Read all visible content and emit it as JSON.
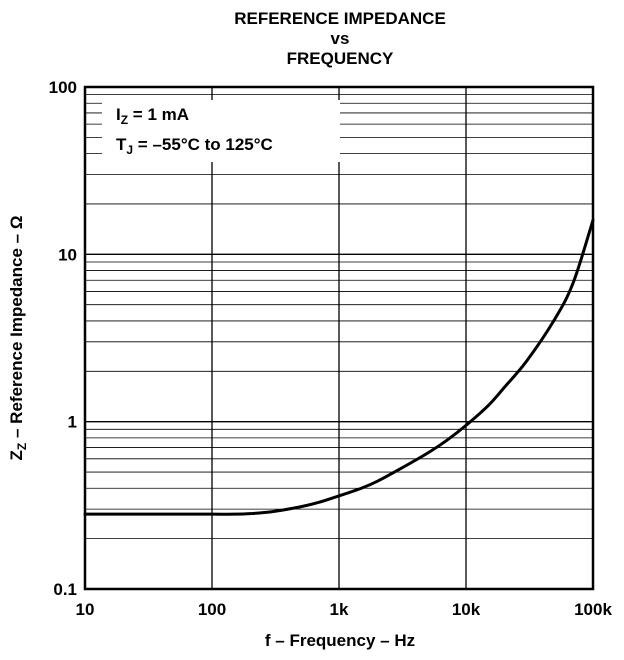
{
  "chart_data": {
    "type": "line",
    "title_lines": [
      "REFERENCE IMPEDANCE",
      "vs",
      "FREQUENCY"
    ],
    "xlabel": "f – Frequency – Hz",
    "ylabel_main": "Z",
    "ylabel_sub": "Z",
    "ylabel_rest": " – Reference Impedance – Ω",
    "x_scale": "log",
    "y_scale": "log",
    "xlim": [
      10,
      100000
    ],
    "ylim": [
      0.1,
      100
    ],
    "x_ticks": [
      {
        "value": 10,
        "label": "10"
      },
      {
        "value": 100,
        "label": "100"
      },
      {
        "value": 1000,
        "label": "1k"
      },
      {
        "value": 10000,
        "label": "10k"
      },
      {
        "value": 100000,
        "label": "100k"
      }
    ],
    "y_ticks": [
      {
        "value": 0.1,
        "label": "0.1"
      },
      {
        "value": 1,
        "label": "1"
      },
      {
        "value": 10,
        "label": "10"
      },
      {
        "value": 100,
        "label": "100"
      }
    ],
    "grid": true,
    "legend": {
      "placement": "top-left",
      "line1_main": "I",
      "line1_sub": "Z",
      "line1_rest": " = 1 mA",
      "line2_main": "T",
      "line2_sub": "J",
      "line2_rest": " = –55°C to 125°C"
    },
    "series": [
      {
        "x": [
          10,
          20,
          50,
          100,
          150,
          200,
          300,
          500,
          700,
          1000,
          1500,
          2000,
          3000,
          5000,
          7000,
          10000,
          15000,
          20000,
          30000,
          50000,
          70000,
          100000
        ],
        "y": [
          0.28,
          0.28,
          0.28,
          0.28,
          0.28,
          0.282,
          0.29,
          0.31,
          0.33,
          0.36,
          0.4,
          0.44,
          0.52,
          0.65,
          0.77,
          0.95,
          1.25,
          1.6,
          2.3,
          4.1,
          6.8,
          16
        ]
      }
    ]
  }
}
